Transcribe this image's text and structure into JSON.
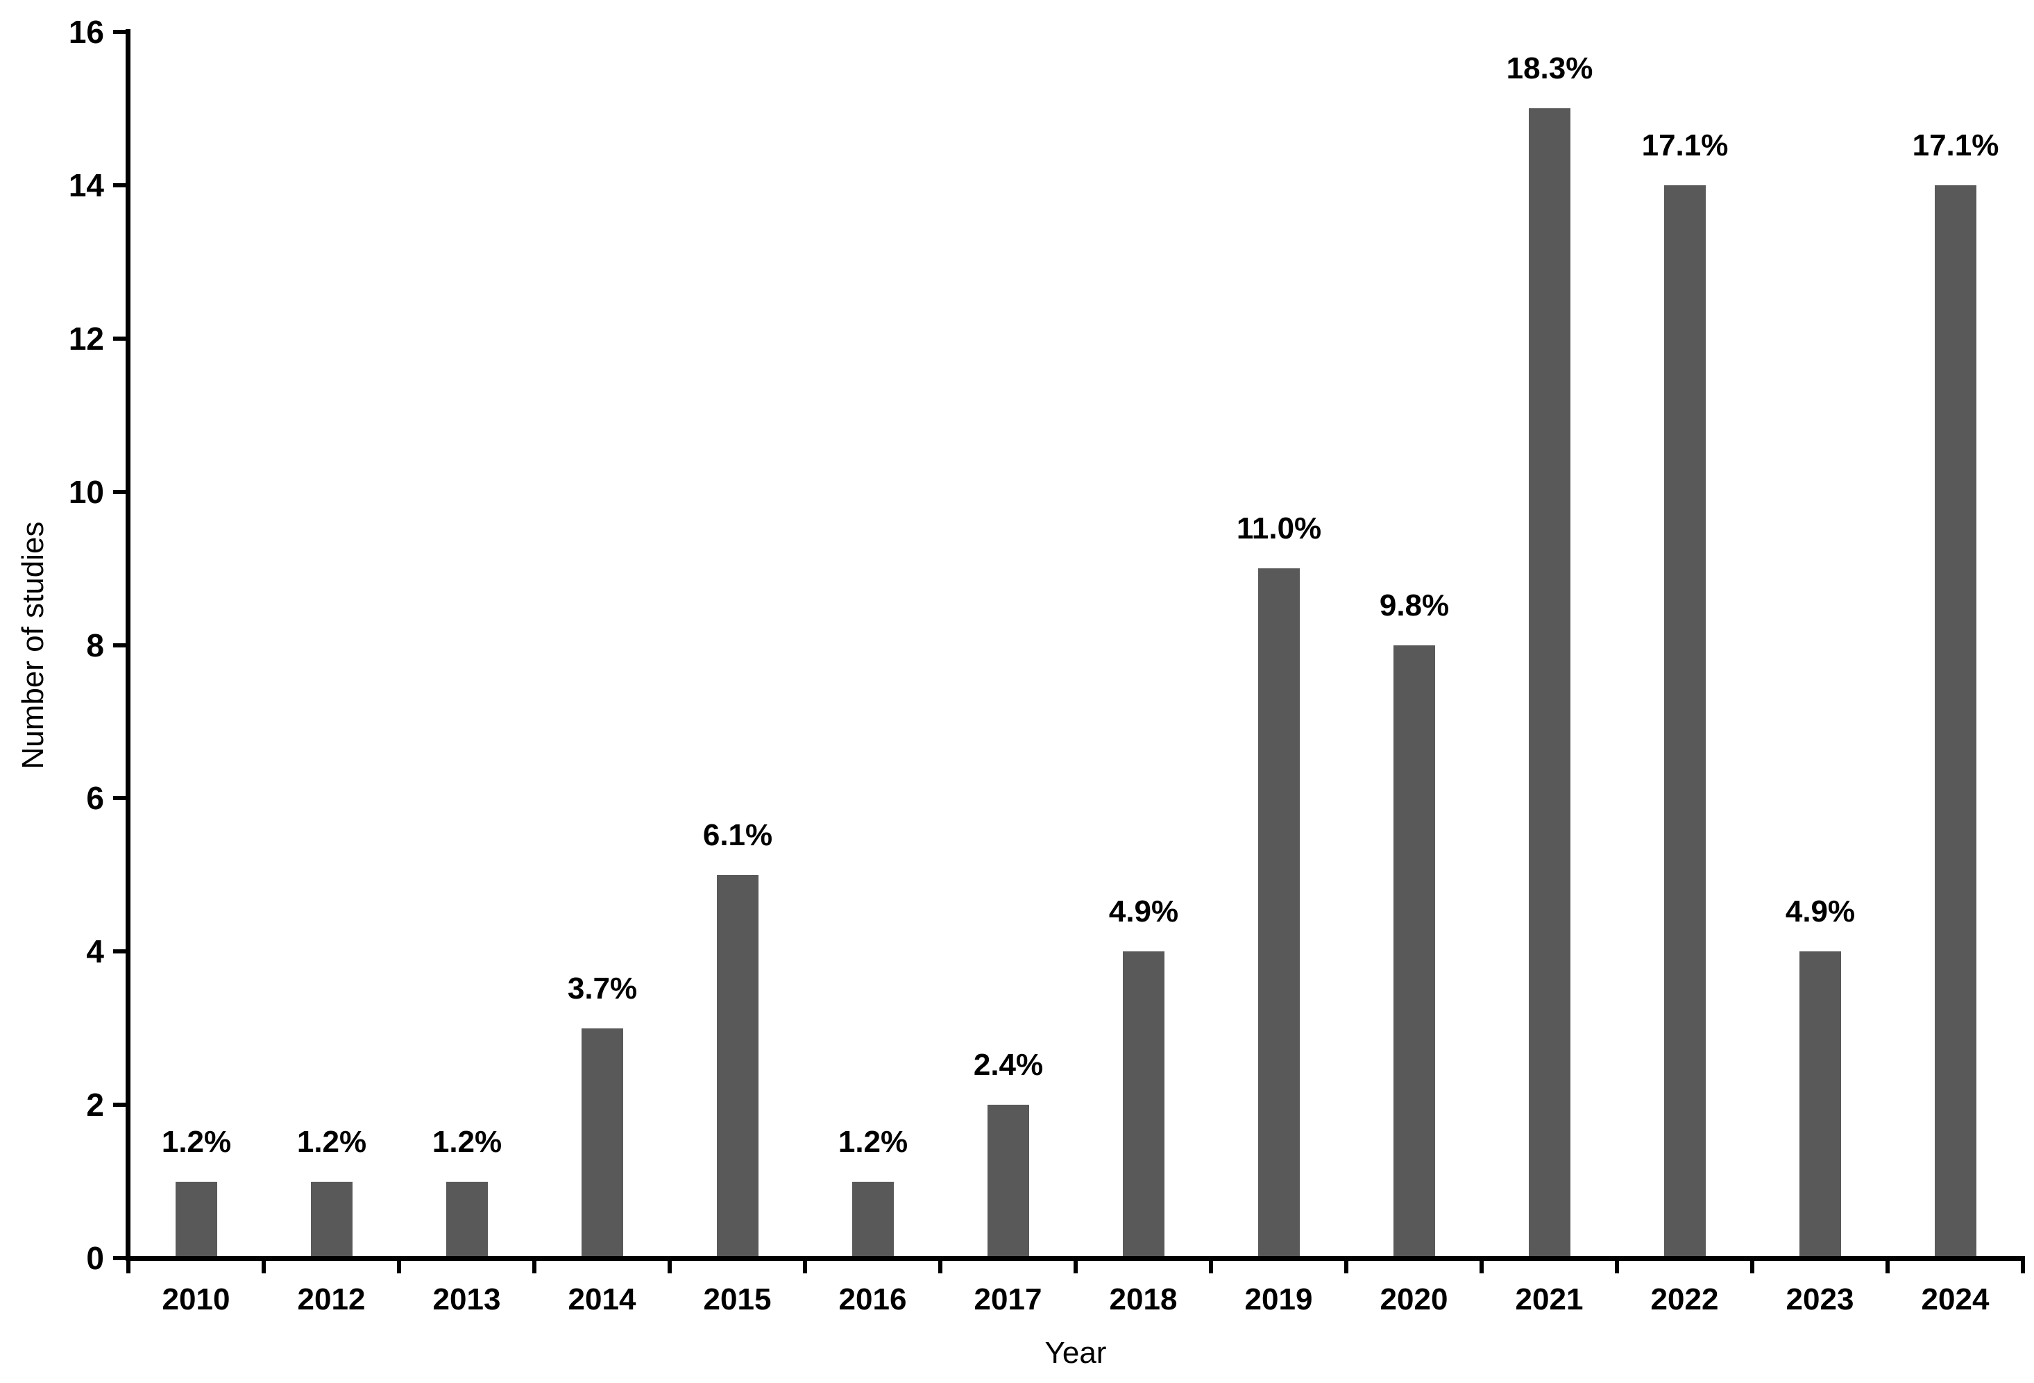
{
  "chart_data": {
    "type": "bar",
    "title": "",
    "xlabel": "Year",
    "ylabel": "Number of studies",
    "categories": [
      "2010",
      "2012",
      "2013",
      "2014",
      "2015",
      "2016",
      "2017",
      "2018",
      "2019",
      "2020",
      "2021",
      "2022",
      "2023",
      "2024"
    ],
    "values": [
      1,
      1,
      1,
      3,
      5,
      1,
      2,
      4,
      9,
      8,
      15,
      14,
      4,
      14
    ],
    "bar_labels": [
      "1.2%",
      "1.2%",
      "1.2%",
      "3.7%",
      "6.1%",
      "1.2%",
      "2.4%",
      "4.9%",
      "11.0%",
      "9.8%",
      "18.3%",
      "17.1%",
      "4.9%",
      "17.1%"
    ],
    "ylim": [
      0,
      16
    ],
    "yticks": [
      0,
      2,
      4,
      6,
      8,
      10,
      12,
      14,
      16
    ],
    "grid": false,
    "legend": "none",
    "bar_color": "#595959",
    "axis_color": "#000000",
    "text_color": "#000000"
  }
}
